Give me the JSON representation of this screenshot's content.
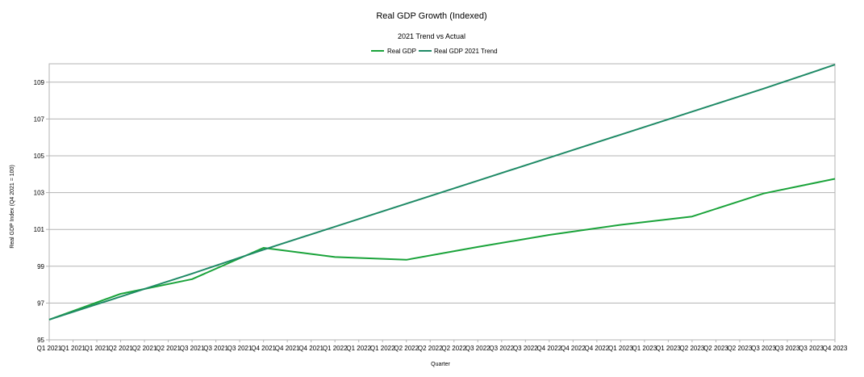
{
  "chart_data": {
    "type": "line",
    "title": "Real GDP Growth (Indexed)",
    "subtitle": "2021 Trend vs Actual",
    "xlabel": "Quarter",
    "ylabel": "Real GDP Index (Q4 2021 = 100)",
    "ylim": [
      95,
      110
    ],
    "yticks": [
      95,
      97,
      99,
      101,
      103,
      105,
      107,
      109
    ],
    "grid": true,
    "legend": "top-center",
    "x_tick_labels": [
      "Q1 2021",
      "Q1 2021",
      "Q1 2021",
      "Q2 2021",
      "Q2 2021",
      "Q2 2021",
      "Q3 2021",
      "Q3 2021",
      "Q3 2021",
      "Q4 2021",
      "Q4 2021",
      "Q4 2021",
      "Q1 2022",
      "Q1 2022",
      "Q1 2022",
      "Q2 2022",
      "Q2 2022",
      "Q2 2022",
      "Q3 2022",
      "Q3 2022",
      "Q3 2022",
      "Q4 2022",
      "Q4 2022",
      "Q4 2022",
      "Q1 2023",
      "Q1 2023",
      "Q1 2023",
      "Q2 2023",
      "Q2 2023",
      "Q2 2023",
      "Q3 2023",
      "Q3 2023",
      "Q3 2023",
      "Q4 2023"
    ],
    "x": [
      "Q1 2021",
      "Q2 2021",
      "Q3 2021",
      "Q4 2021",
      "Q1 2022",
      "Q2 2022",
      "Q3 2022",
      "Q4 2022",
      "Q1 2023",
      "Q2 2023",
      "Q3 2023",
      "Q4 2023"
    ],
    "series": [
      {
        "name": "Real GDP",
        "color": "#1aa33a",
        "values": [
          96.1,
          97.5,
          98.3,
          100.0,
          99.5,
          99.35,
          100.05,
          100.7,
          101.25,
          101.7,
          102.95,
          103.75
        ]
      },
      {
        "name": "Real GDP 2021 Trend",
        "color": "#1f8a66",
        "values": [
          96.1,
          97.35,
          98.6,
          99.9,
          101.15,
          102.4,
          103.65,
          104.9,
          106.15,
          107.4,
          108.65,
          109.95
        ]
      }
    ]
  }
}
